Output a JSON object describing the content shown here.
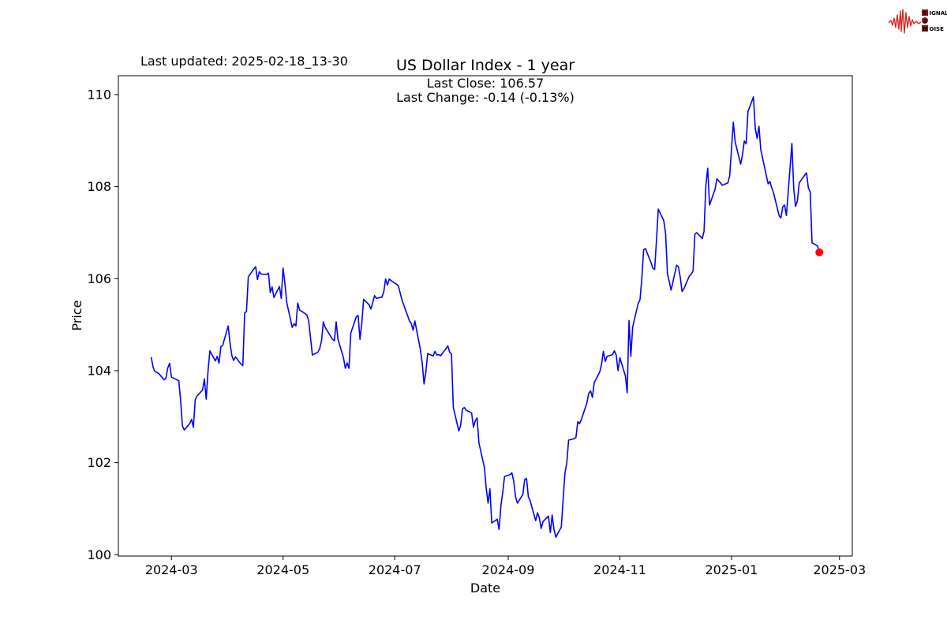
{
  "header": {
    "last_updated": "Last updated: 2025-02-18_13-30",
    "title": "US Dollar Index - 1 year",
    "subtitle_line1": "Last Close: 106.57",
    "subtitle_line2": "Last Change: -0.14 (-0.13%)"
  },
  "logo": {
    "wave_color": "#d62828",
    "text_color": "#8b1515",
    "rows": [
      {
        "boxed": "S",
        "rest": "IGNAL"
      },
      {
        "boxed": "2",
        "rest": ""
      },
      {
        "boxed": "N",
        "rest": "OISE"
      }
    ]
  },
  "chart_data": {
    "type": "line",
    "title": "US Dollar Index - 1 year",
    "xlabel": "Date",
    "ylabel": "Price",
    "legend": null,
    "grid": false,
    "line_color": "#0000ff",
    "last_point_marker_color": "#ff0000",
    "xlim": [
      "2024-02-01",
      "2025-03-08"
    ],
    "ylim": [
      99.97,
      110.41
    ],
    "y_ticks": [
      100,
      102,
      104,
      106,
      108,
      110
    ],
    "x_ticks": [
      {
        "date": "2024-03-01",
        "label": "2024-03"
      },
      {
        "date": "2024-05-01",
        "label": "2024-05"
      },
      {
        "date": "2024-07-01",
        "label": "2024-07"
      },
      {
        "date": "2024-09-01",
        "label": "2024-09"
      },
      {
        "date": "2024-11-01",
        "label": "2024-11"
      },
      {
        "date": "2025-01-01",
        "label": "2025-01"
      },
      {
        "date": "2025-03-01",
        "label": "2025-03"
      }
    ],
    "last_close": 106.57,
    "last_change": -0.14,
    "last_change_pct": -0.13,
    "points": [
      [
        "2024-02-19",
        104.28
      ],
      [
        "2024-02-20",
        104.07
      ],
      [
        "2024-02-21",
        103.98
      ],
      [
        "2024-02-22",
        103.96
      ],
      [
        "2024-02-23",
        103.94
      ],
      [
        "2024-02-26",
        103.8
      ],
      [
        "2024-02-27",
        103.84
      ],
      [
        "2024-02-28",
        104.06
      ],
      [
        "2024-02-29",
        104.16
      ],
      [
        "2024-03-01",
        103.86
      ],
      [
        "2024-03-04",
        103.8
      ],
      [
        "2024-03-05",
        103.78
      ],
      [
        "2024-03-06",
        103.36
      ],
      [
        "2024-03-07",
        102.8
      ],
      [
        "2024-03-08",
        102.71
      ],
      [
        "2024-03-11",
        102.85
      ],
      [
        "2024-03-12",
        102.94
      ],
      [
        "2024-03-13",
        102.77
      ],
      [
        "2024-03-14",
        103.37
      ],
      [
        "2024-03-15",
        103.45
      ],
      [
        "2024-03-18",
        103.58
      ],
      [
        "2024-03-19",
        103.82
      ],
      [
        "2024-03-20",
        103.38
      ],
      [
        "2024-03-21",
        104.0
      ],
      [
        "2024-03-22",
        104.43
      ],
      [
        "2024-03-25",
        104.21
      ],
      [
        "2024-03-26",
        104.31
      ],
      [
        "2024-03-27",
        104.16
      ],
      [
        "2024-03-28",
        104.52
      ],
      [
        "2024-03-29",
        104.55
      ],
      [
        "2024-04-01",
        104.97
      ],
      [
        "2024-04-02",
        104.6
      ],
      [
        "2024-04-03",
        104.33
      ],
      [
        "2024-04-04",
        104.22
      ],
      [
        "2024-04-05",
        104.3
      ],
      [
        "2024-04-08",
        104.14
      ],
      [
        "2024-04-09",
        104.11
      ],
      [
        "2024-04-10",
        105.25
      ],
      [
        "2024-04-11",
        105.29
      ],
      [
        "2024-04-12",
        106.04
      ],
      [
        "2024-04-15",
        106.21
      ],
      [
        "2024-04-16",
        106.26
      ],
      [
        "2024-04-17",
        105.98
      ],
      [
        "2024-04-18",
        106.15
      ],
      [
        "2024-04-19",
        106.1
      ],
      [
        "2024-04-22",
        106.09
      ],
      [
        "2024-04-23",
        106.12
      ],
      [
        "2024-04-24",
        105.7
      ],
      [
        "2024-04-25",
        105.82
      ],
      [
        "2024-04-26",
        105.59
      ],
      [
        "2024-04-29",
        105.83
      ],
      [
        "2024-04-30",
        105.57
      ],
      [
        "2024-05-01",
        106.23
      ],
      [
        "2024-05-02",
        105.89
      ],
      [
        "2024-05-03",
        105.48
      ],
      [
        "2024-05-06",
        104.94
      ],
      [
        "2024-05-07",
        105.02
      ],
      [
        "2024-05-08",
        104.97
      ],
      [
        "2024-05-09",
        105.47
      ],
      [
        "2024-05-10",
        105.32
      ],
      [
        "2024-05-13",
        105.24
      ],
      [
        "2024-05-14",
        105.21
      ],
      [
        "2024-05-15",
        105.08
      ],
      [
        "2024-05-16",
        104.71
      ],
      [
        "2024-05-17",
        104.34
      ],
      [
        "2024-05-20",
        104.4
      ],
      [
        "2024-05-21",
        104.48
      ],
      [
        "2024-05-22",
        104.65
      ],
      [
        "2024-05-23",
        105.06
      ],
      [
        "2024-05-24",
        104.94
      ],
      [
        "2024-05-28",
        104.68
      ],
      [
        "2024-05-29",
        104.65
      ],
      [
        "2024-05-30",
        105.06
      ],
      [
        "2024-05-31",
        104.68
      ],
      [
        "2024-06-03",
        104.28
      ],
      [
        "2024-06-04",
        104.05
      ],
      [
        "2024-06-05",
        104.17
      ],
      [
        "2024-06-06",
        104.05
      ],
      [
        "2024-06-07",
        104.82
      ],
      [
        "2024-06-10",
        105.17
      ],
      [
        "2024-06-11",
        105.2
      ],
      [
        "2024-06-12",
        104.68
      ],
      [
        "2024-06-13",
        105.03
      ],
      [
        "2024-06-14",
        105.55
      ],
      [
        "2024-06-17",
        105.43
      ],
      [
        "2024-06-18",
        105.34
      ],
      [
        "2024-06-20",
        105.63
      ],
      [
        "2024-06-21",
        105.57
      ],
      [
        "2024-06-24",
        105.6
      ],
      [
        "2024-06-25",
        105.71
      ],
      [
        "2024-06-26",
        105.99
      ],
      [
        "2024-06-27",
        105.86
      ],
      [
        "2024-06-28",
        105.99
      ],
      [
        "2024-07-01",
        105.9
      ],
      [
        "2024-07-02",
        105.88
      ],
      [
        "2024-07-03",
        105.84
      ],
      [
        "2024-07-05",
        105.53
      ],
      [
        "2024-07-08",
        105.2
      ],
      [
        "2024-07-09",
        105.08
      ],
      [
        "2024-07-10",
        105.03
      ],
      [
        "2024-07-11",
        104.88
      ],
      [
        "2024-07-12",
        105.08
      ],
      [
        "2024-07-15",
        104.46
      ],
      [
        "2024-07-16",
        104.17
      ],
      [
        "2024-07-17",
        103.71
      ],
      [
        "2024-07-18",
        103.97
      ],
      [
        "2024-07-19",
        104.37
      ],
      [
        "2024-07-22",
        104.32
      ],
      [
        "2024-07-23",
        104.42
      ],
      [
        "2024-07-24",
        104.34
      ],
      [
        "2024-07-25",
        104.35
      ],
      [
        "2024-07-26",
        104.32
      ],
      [
        "2024-07-29",
        104.48
      ],
      [
        "2024-07-30",
        104.54
      ],
      [
        "2024-07-31",
        104.4
      ],
      [
        "2024-08-01",
        104.36
      ],
      [
        "2024-08-02",
        103.2
      ],
      [
        "2024-08-05",
        102.69
      ],
      [
        "2024-08-06",
        102.81
      ],
      [
        "2024-08-07",
        103.17
      ],
      [
        "2024-08-08",
        103.2
      ],
      [
        "2024-08-09",
        103.14
      ],
      [
        "2024-08-12",
        103.08
      ],
      [
        "2024-08-13",
        102.77
      ],
      [
        "2024-08-14",
        102.91
      ],
      [
        "2024-08-15",
        102.97
      ],
      [
        "2024-08-16",
        102.43
      ],
      [
        "2024-08-19",
        101.89
      ],
      [
        "2024-08-20",
        101.44
      ],
      [
        "2024-08-21",
        101.12
      ],
      [
        "2024-08-22",
        101.43
      ],
      [
        "2024-08-23",
        100.69
      ],
      [
        "2024-08-26",
        100.77
      ],
      [
        "2024-08-27",
        100.55
      ],
      [
        "2024-08-28",
        101.06
      ],
      [
        "2024-08-29",
        101.35
      ],
      [
        "2024-08-30",
        101.7
      ],
      [
        "2024-09-02",
        101.74
      ],
      [
        "2024-09-03",
        101.78
      ],
      [
        "2024-09-04",
        101.6
      ],
      [
        "2024-09-05",
        101.26
      ],
      [
        "2024-09-06",
        101.12
      ],
      [
        "2024-09-09",
        101.31
      ],
      [
        "2024-09-10",
        101.63
      ],
      [
        "2024-09-11",
        101.66
      ],
      [
        "2024-09-12",
        101.26
      ],
      [
        "2024-09-13",
        101.17
      ],
      [
        "2024-09-16",
        100.74
      ],
      [
        "2024-09-17",
        100.91
      ],
      [
        "2024-09-18",
        100.8
      ],
      [
        "2024-09-19",
        100.57
      ],
      [
        "2024-09-20",
        100.72
      ],
      [
        "2024-09-23",
        100.84
      ],
      [
        "2024-09-24",
        100.48
      ],
      [
        "2024-09-25",
        100.86
      ],
      [
        "2024-09-26",
        100.55
      ],
      [
        "2024-09-27",
        100.38
      ],
      [
        "2024-09-30",
        100.6
      ],
      [
        "2024-10-01",
        101.2
      ],
      [
        "2024-10-02",
        101.77
      ],
      [
        "2024-10-03",
        102.0
      ],
      [
        "2024-10-04",
        102.49
      ],
      [
        "2024-10-07",
        102.52
      ],
      [
        "2024-10-08",
        102.55
      ],
      [
        "2024-10-09",
        102.89
      ],
      [
        "2024-10-10",
        102.85
      ],
      [
        "2024-10-11",
        102.94
      ],
      [
        "2024-10-14",
        103.3
      ],
      [
        "2024-10-15",
        103.51
      ],
      [
        "2024-10-16",
        103.56
      ],
      [
        "2024-10-17",
        103.42
      ],
      [
        "2024-10-18",
        103.74
      ],
      [
        "2024-10-21",
        103.97
      ],
      [
        "2024-10-22",
        104.14
      ],
      [
        "2024-10-23",
        104.42
      ],
      [
        "2024-10-24",
        104.2
      ],
      [
        "2024-10-25",
        104.31
      ],
      [
        "2024-10-28",
        104.35
      ],
      [
        "2024-10-29",
        104.43
      ],
      [
        "2024-10-30",
        104.34
      ],
      [
        "2024-10-31",
        104.0
      ],
      [
        "2024-11-01",
        104.28
      ],
      [
        "2024-11-04",
        103.89
      ],
      [
        "2024-11-05",
        103.52
      ],
      [
        "2024-11-06",
        105.09
      ],
      [
        "2024-11-07",
        104.31
      ],
      [
        "2024-11-08",
        104.95
      ],
      [
        "2024-11-11",
        105.46
      ],
      [
        "2024-11-12",
        105.54
      ],
      [
        "2024-11-13",
        106.0
      ],
      [
        "2024-11-14",
        106.63
      ],
      [
        "2024-11-15",
        106.65
      ],
      [
        "2024-11-18",
        106.35
      ],
      [
        "2024-11-19",
        106.23
      ],
      [
        "2024-11-20",
        106.2
      ],
      [
        "2024-11-21",
        106.83
      ],
      [
        "2024-11-22",
        107.51
      ],
      [
        "2024-11-25",
        107.26
      ],
      [
        "2024-11-26",
        106.97
      ],
      [
        "2024-11-27",
        106.11
      ],
      [
        "2024-11-29",
        105.75
      ],
      [
        "2024-12-02",
        106.29
      ],
      [
        "2024-12-03",
        106.26
      ],
      [
        "2024-12-04",
        106.03
      ],
      [
        "2024-12-05",
        105.72
      ],
      [
        "2024-12-06",
        105.78
      ],
      [
        "2024-12-09",
        106.06
      ],
      [
        "2024-12-10",
        106.09
      ],
      [
        "2024-12-11",
        106.17
      ],
      [
        "2024-12-12",
        106.97
      ],
      [
        "2024-12-13",
        107.0
      ],
      [
        "2024-12-16",
        106.87
      ],
      [
        "2024-12-17",
        107.03
      ],
      [
        "2024-12-18",
        108.03
      ],
      [
        "2024-12-19",
        108.4
      ],
      [
        "2024-12-20",
        107.6
      ],
      [
        "2024-12-23",
        107.94
      ],
      [
        "2024-12-24",
        108.17
      ],
      [
        "2024-12-26",
        108.08
      ],
      [
        "2024-12-27",
        108.03
      ],
      [
        "2024-12-30",
        108.08
      ],
      [
        "2024-12-31",
        108.23
      ],
      [
        "2025-01-02",
        109.4
      ],
      [
        "2025-01-03",
        108.97
      ],
      [
        "2025-01-06",
        108.49
      ],
      [
        "2025-01-07",
        108.69
      ],
      [
        "2025-01-08",
        108.99
      ],
      [
        "2025-01-09",
        108.93
      ],
      [
        "2025-01-10",
        109.63
      ],
      [
        "2025-01-13",
        109.95
      ],
      [
        "2025-01-14",
        109.26
      ],
      [
        "2025-01-15",
        109.05
      ],
      [
        "2025-01-16",
        109.31
      ],
      [
        "2025-01-17",
        108.8
      ],
      [
        "2025-01-21",
        108.06
      ],
      [
        "2025-01-22",
        108.11
      ],
      [
        "2025-01-23",
        107.97
      ],
      [
        "2025-01-24",
        107.86
      ],
      [
        "2025-01-27",
        107.37
      ],
      [
        "2025-01-28",
        107.32
      ],
      [
        "2025-01-29",
        107.56
      ],
      [
        "2025-01-30",
        107.6
      ],
      [
        "2025-01-31",
        107.37
      ],
      [
        "2025-02-03",
        108.94
      ],
      [
        "2025-02-04",
        107.95
      ],
      [
        "2025-02-05",
        107.57
      ],
      [
        "2025-02-06",
        107.69
      ],
      [
        "2025-02-07",
        108.08
      ],
      [
        "2025-02-10",
        108.25
      ],
      [
        "2025-02-11",
        108.3
      ],
      [
        "2025-02-12",
        107.97
      ],
      [
        "2025-02-13",
        107.89
      ],
      [
        "2025-02-14",
        106.78
      ],
      [
        "2025-02-17",
        106.71
      ],
      [
        "2025-02-18",
        106.57
      ]
    ]
  }
}
